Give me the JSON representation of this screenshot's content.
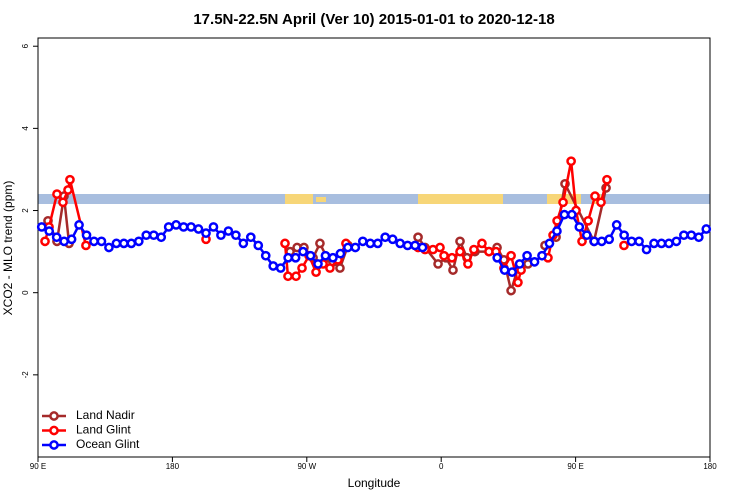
{
  "chart_data": {
    "type": "line",
    "title": "17.5N-22.5N April (Ver 10)   2015-01-01 to 2020-12-18",
    "x_label": "Longitude",
    "y_label": "XCO2 - MLO trend (ppm)",
    "xlim": [
      90,
      540
    ],
    "xticks": [
      {
        "value": 90,
        "label": "90 E"
      },
      180,
      {
        "value": 270,
        "label": "90 W"
      },
      {
        "value": 360,
        "label": "0"
      },
      {
        "value": 450,
        "label": "90 E"
      },
      {
        "value": 540,
        "label": "180"
      }
    ],
    "ylim": [
      -4,
      6.2
    ],
    "yticks": [
      -2,
      0,
      2,
      4,
      6
    ],
    "legend": "bottomleft",
    "series": [
      {
        "name": "Land Nadir",
        "color": "#a52a2a",
        "x": [
          96.7,
          102.7,
          107.4,
          110.8,
          null,
          258.8,
          263.5,
          268.1,
          274.2,
          278.8,
          283.5,
          287.5,
          292.2,
          297.6,
          null,
          344.5,
          349.2,
          357.9,
          363.2,
          367.9,
          372.6,
          377.3,
          382.6,
          392,
          397.4,
          402,
          406.8,
          411.4,
          418.1,
          null,
          429.5,
          436.9,
          442.9,
          462.3,
          470.4
        ],
        "values": [
          1.75,
          1.25,
          2.35,
          1.2,
          null,
          1.0,
          1.1,
          1.1,
          0.85,
          1.2,
          0.85,
          0.75,
          0.6,
          1.15,
          null,
          1.35,
          1.1,
          0.7,
          0.85,
          0.55,
          1.25,
          0.85,
          1.0,
          1.0,
          1.1,
          0.8,
          0.05,
          0.6,
          0.7,
          null,
          1.15,
          1.35,
          2.65,
          1.25,
          2.55
        ]
      },
      {
        "name": "Land Glint",
        "color": "#ff0000",
        "x": [
          94.7,
          97.4,
          102.7,
          106.7,
          110.1,
          111.4,
          122.1,
          null,
          202.5,
          null,
          255.4,
          257.4,
          262.8,
          266.8,
          271.5,
          276.2,
          280.9,
          285.5,
          290.9,
          296.2,
          null,
          344.5,
          349.2,
          354.5,
          359.2,
          361.9,
          367.2,
          372.6,
          377.9,
          381.9,
          387.3,
          392,
          396.7,
          402,
          406.8,
          411.4,
          413.5,
          null,
          431.5,
          434.9,
          437.6,
          441.6,
          447,
          450.3,
          454.3,
          458.4,
          463,
          467,
          471,
          null,
          482.4
        ],
        "values": [
          1.25,
          1.6,
          2.4,
          2.2,
          2.5,
          2.75,
          1.15,
          null,
          1.3,
          null,
          1.2,
          0.4,
          0.4,
          0.6,
          0.9,
          0.5,
          0.7,
          0.6,
          0.8,
          1.2,
          null,
          1.1,
          1.05,
          1.05,
          1.1,
          0.9,
          0.85,
          1.0,
          0.7,
          1.05,
          1.2,
          1.0,
          1.0,
          0.6,
          0.9,
          0.25,
          0.55,
          null,
          0.85,
          1.4,
          1.75,
          2.2,
          3.2,
          2.0,
          1.25,
          1.75,
          2.35,
          2.2,
          2.75,
          null,
          1.15
        ]
      },
      {
        "name": "Ocean Glint",
        "color": "#0000ff",
        "x": [
          92.5,
          97.5,
          102.5,
          107.5,
          112.5,
          117.5,
          122.5,
          127.5,
          132.5,
          137.5,
          142.5,
          147.5,
          152.5,
          157.5,
          162.5,
          167.5,
          172.5,
          177.5,
          182.5,
          187.5,
          192.5,
          197.5,
          202.5,
          207.5,
          212.5,
          217.5,
          222.5,
          227.5,
          232.5,
          237.5,
          242.5,
          247.5,
          252.5,
          257.5,
          262.5,
          267.5,
          272.5,
          277.5,
          282.5,
          287.5,
          292.5,
          297.5,
          302.5,
          307.5,
          312.5,
          317.5,
          322.5,
          327.5,
          332.5,
          337.5,
          342.5,
          347.5,
          null,
          397.5,
          402.5,
          407.5,
          412.5,
          417.5,
          422.5,
          427.5,
          432.5,
          437.5,
          442.5,
          447.5,
          452.5,
          457.5,
          462.5,
          467.5,
          472.5,
          477.5,
          482.5,
          487.5,
          492.5,
          497.5,
          502.5,
          507.5,
          512.5,
          517.5,
          522.5,
          527.5,
          532.5,
          537.5
        ],
        "values": [
          1.6,
          1.5,
          1.35,
          1.25,
          1.3,
          1.65,
          1.4,
          1.25,
          1.25,
          1.1,
          1.2,
          1.2,
          1.2,
          1.25,
          1.4,
          1.4,
          1.35,
          1.6,
          1.65,
          1.6,
          1.6,
          1.55,
          1.45,
          1.6,
          1.4,
          1.5,
          1.4,
          1.2,
          1.35,
          1.15,
          0.9,
          0.65,
          0.6,
          0.85,
          0.85,
          1.0,
          0.9,
          0.7,
          0.9,
          0.85,
          0.95,
          1.1,
          1.1,
          1.25,
          1.2,
          1.2,
          1.35,
          1.3,
          1.2,
          1.15,
          1.15,
          1.1,
          null,
          0.85,
          0.55,
          0.5,
          0.7,
          0.9,
          0.75,
          0.9,
          1.2,
          1.5,
          1.9,
          1.9,
          1.6,
          1.4,
          1.25,
          1.25,
          1.3,
          1.65,
          1.4,
          1.25,
          1.25,
          1.05,
          1.2,
          1.2,
          1.2,
          1.25,
          1.4,
          1.4,
          1.35,
          1.55
        ]
      }
    ]
  }
}
